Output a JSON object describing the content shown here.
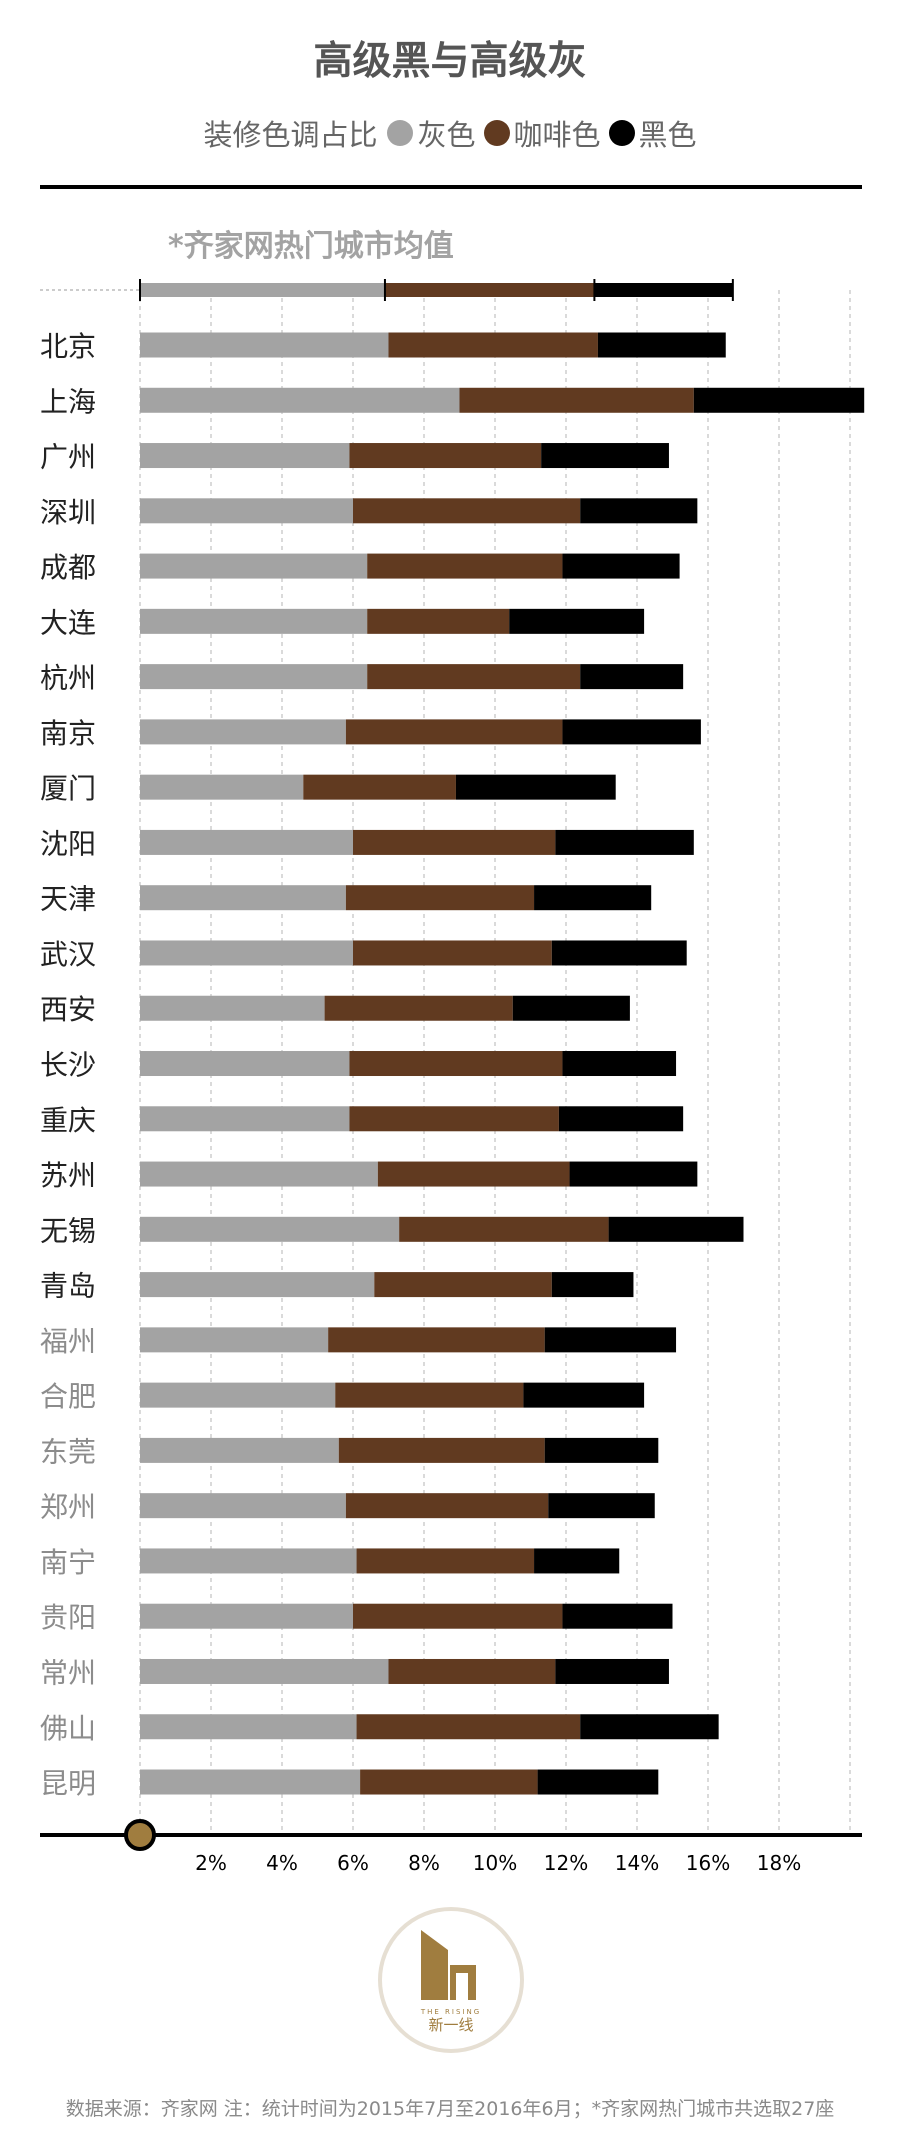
{
  "title": "高级黑与高级灰",
  "legend": {
    "title": "装修色调占比",
    "items": [
      {
        "label": "灰色",
        "color": "#a3a3a3"
      },
      {
        "label": "咖啡色",
        "color": "#613a20"
      },
      {
        "label": "黑色",
        "color": "#000000"
      }
    ]
  },
  "logo": {
    "text": "新一线",
    "subtext": "THE RISING",
    "color": "#a07d3f",
    "ring_color": "#e6dfd3"
  },
  "footnote": "数据来源：齐家网 注：统计时间为2015年7月至2016年6月；*齐家网热门城市共选取27座",
  "chart_data": {
    "type": "bar",
    "stacked": true,
    "orientation": "horizontal",
    "xlim": [
      0,
      20
    ],
    "x_ticks": [
      "2%",
      "4%",
      "6%",
      "8%",
      "10%",
      "12%",
      "14%",
      "16%",
      "18%"
    ],
    "grid": true,
    "series_colors": {
      "gray": "#a3a3a3",
      "brown": "#613a20",
      "black": "#000000"
    },
    "average_label": "*齐家网热门城市均值",
    "average": {
      "gray": 6.9,
      "brown": 5.9,
      "black": 3.9
    },
    "categories": [
      "北京",
      "上海",
      "广州",
      "深圳",
      "成都",
      "大连",
      "杭州",
      "南京",
      "厦门",
      "沈阳",
      "天津",
      "武汉",
      "西安",
      "长沙",
      "重庆",
      "苏州",
      "无锡",
      "青岛",
      "福州",
      "合肥",
      "东莞",
      "郑州",
      "南宁",
      "贵阳",
      "常州",
      "佛山",
      "昆明"
    ],
    "series": [
      {
        "name": "灰色",
        "values": [
          7.0,
          9.0,
          5.9,
          6.0,
          6.4,
          6.4,
          6.4,
          5.8,
          4.6,
          6.0,
          5.8,
          6.0,
          5.2,
          5.9,
          5.9,
          6.7,
          7.3,
          6.6,
          5.3,
          5.5,
          5.6,
          5.8,
          6.1,
          6.0,
          7.0,
          6.1,
          6.2
        ]
      },
      {
        "name": "咖啡色",
        "values": [
          5.9,
          6.6,
          5.4,
          6.4,
          5.5,
          4.0,
          6.0,
          6.1,
          4.3,
          5.7,
          5.3,
          5.6,
          5.3,
          6.0,
          5.9,
          5.4,
          5.9,
          5.0,
          6.1,
          5.3,
          5.8,
          5.7,
          5.0,
          5.9,
          4.7,
          6.3,
          5.0
        ]
      },
      {
        "name": "黑色",
        "values": [
          3.6,
          4.8,
          3.6,
          3.3,
          3.3,
          3.8,
          2.9,
          3.9,
          4.5,
          3.9,
          3.3,
          3.8,
          3.3,
          3.2,
          3.5,
          3.6,
          3.8,
          2.3,
          3.7,
          3.4,
          3.2,
          3.0,
          2.4,
          3.1,
          3.2,
          3.9,
          3.4
        ]
      }
    ],
    "category_emphasis": [
      true,
      true,
      true,
      true,
      true,
      true,
      true,
      true,
      true,
      true,
      true,
      true,
      true,
      true,
      true,
      true,
      true,
      true,
      false,
      false,
      false,
      false,
      false,
      false,
      false,
      false,
      false
    ]
  }
}
